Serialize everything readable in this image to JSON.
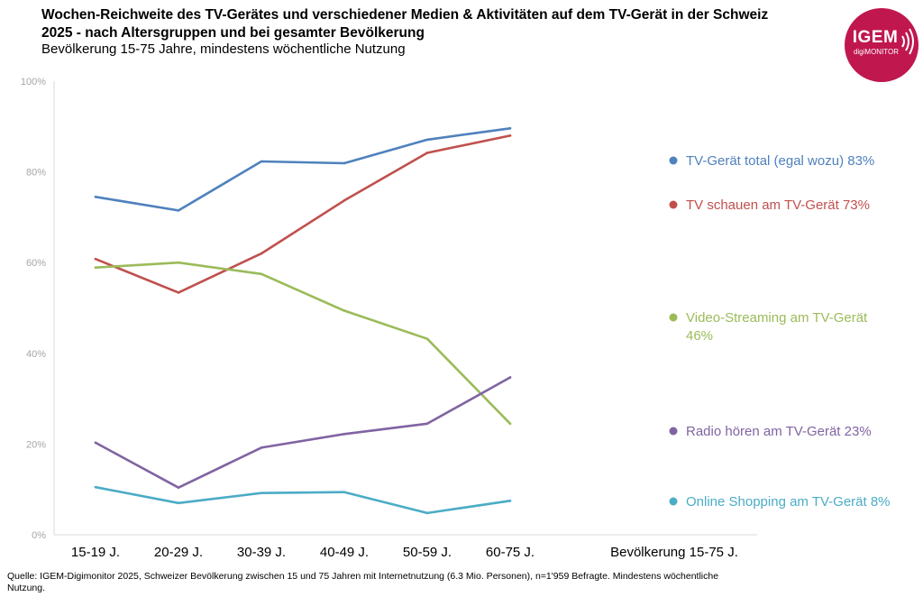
{
  "header": {
    "title": "Wochen-Reichweite des TV-Gerätes und verschiedener Medien & Aktivitäten auf dem TV-Gerät in der Schweiz 2025 - nach Altersgruppen und bei gesamter Bevölkerung",
    "subtitle": "Bevölkerung 15-75 Jahre, mindestens wöchentliche Nutzung"
  },
  "logo": {
    "name": "IGEM",
    "sub": "digiMONITOR",
    "color": "#c0174f"
  },
  "footer": {
    "source": "Quelle: IGEM-Digimonitor 2025, Schweizer Bevölkerung zwischen 15 und 75 Jahren mit Internetnutzung (6.3 Mio. Personen), n=1'959 Befragte. Mindestens wöchentliche Nutzung."
  },
  "chart_data": {
    "type": "line",
    "categories": [
      "15-19 J.",
      "20-29 J.",
      "30-39 J.",
      "40-49 J.",
      "50-59 J.",
      "60-75 J."
    ],
    "extra_category": "Bevölkerung 15-75 J.",
    "ylim": [
      0,
      100
    ],
    "yticks": [
      0,
      20,
      40,
      60,
      80,
      100
    ],
    "ytick_labels": [
      "0%",
      "20%",
      "40%",
      "60%",
      "80%",
      "100%"
    ],
    "grid": false,
    "legend_position": "right",
    "series": [
      {
        "name": "TV-Gerät total (egal wozu)",
        "total": "83%",
        "color": "#4f81bd",
        "values": [
          74.5,
          71.5,
          82.3,
          81.9,
          87.1,
          89.6
        ]
      },
      {
        "name": "TV schauen am TV-Gerät",
        "total": "73%",
        "color": "#c0504d",
        "values": [
          60.8,
          53.4,
          62.0,
          73.7,
          84.2,
          88.0
        ]
      },
      {
        "name": "Video-Streaming am TV-Gerät",
        "total": "46%",
        "color": "#9bbb59",
        "values": [
          58.9,
          60.0,
          57.5,
          49.4,
          43.2,
          24.5
        ]
      },
      {
        "name": "Radio hören am TV-Gerät",
        "total": "23%",
        "color": "#8064a2",
        "values": [
          20.3,
          10.4,
          19.2,
          22.2,
          24.5,
          34.7
        ]
      },
      {
        "name": "Online Shopping am TV-Gerät",
        "total": "8%",
        "color": "#4bacc6",
        "values": [
          10.5,
          7.0,
          9.2,
          9.4,
          4.8,
          7.5
        ]
      }
    ]
  }
}
